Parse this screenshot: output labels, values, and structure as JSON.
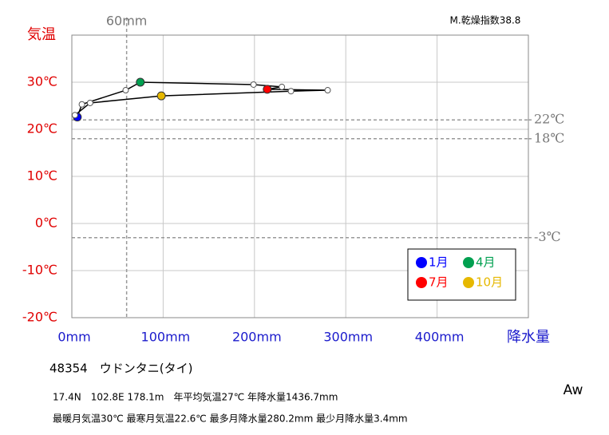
{
  "chart_data": {
    "type": "line",
    "x_label": "降水量",
    "y_label": "気温",
    "x": [
      6,
      11,
      59,
      75,
      199,
      230,
      214,
      280.2,
      240,
      98,
      20,
      3.4
    ],
    "values": [
      22.6,
      25.3,
      28.3,
      30,
      29.5,
      29,
      28.5,
      28.3,
      28.1,
      27.1,
      25.6,
      23
    ],
    "marker_colors": [
      "#0000ff",
      "#ffffff",
      "#ffffff",
      "#00a050",
      "#ffffff",
      "#ffffff",
      "#ff0000",
      "#ffffff",
      "#ffffff",
      "#e6b800",
      "#ffffff",
      "#ffffff"
    ],
    "line_color": "#000000",
    "xlim": [
      0,
      500
    ],
    "ylim": [
      -20,
      40
    ],
    "xticks": [
      {
        "value": 0,
        "label": "0mm"
      },
      {
        "value": 100,
        "label": "100mm"
      },
      {
        "value": 200,
        "label": "200mm"
      },
      {
        "value": 300,
        "label": "300mm"
      },
      {
        "value": 400,
        "label": "400mm"
      }
    ],
    "yticks": [
      {
        "value": -20,
        "label": "-20℃"
      },
      {
        "value": -10,
        "label": "-10℃"
      },
      {
        "value": 0,
        "label": "0℃"
      },
      {
        "value": 10,
        "label": "10℃"
      },
      {
        "value": 20,
        "label": "20℃"
      },
      {
        "value": 30,
        "label": "30℃"
      }
    ],
    "grid": true,
    "h_reference_lines": [
      {
        "value": 22,
        "label": "22℃"
      },
      {
        "value": 18,
        "label": "18℃"
      },
      {
        "value": -3,
        "label": "-3℃"
      }
    ],
    "v_reference_line": {
      "value": 60,
      "label": "60mm"
    },
    "legend": [
      {
        "name": "1月",
        "color": "#0000ff"
      },
      {
        "name": "4月",
        "color": "#00a050"
      },
      {
        "name": "7月",
        "color": "#ff0000"
      },
      {
        "name": "10月",
        "color": "#e6b800"
      }
    ],
    "legend_position": "lower right",
    "dryness_index": "M.乾燥指数38.8",
    "station": "48354　ウドンタニ(タイ)",
    "info_line_1": "17.4N　102.8E 178.1m　年平均気温27℃ 年降水量1436.7mm",
    "info_line_2": "最暖月気温30℃ 最寒月気温22.6℃ 最多月降水量280.2mm 最少月降水量3.4mm",
    "climate_class": "Aw"
  }
}
